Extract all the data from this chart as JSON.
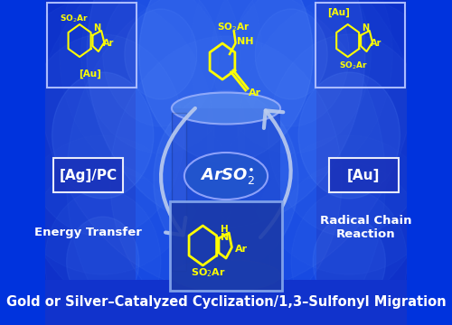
{
  "bg_color": "#0033dd",
  "title_text": "Gold or Silver–Catalyzed Cyclization/1,3–Sulfonyl Migration",
  "title_color": "white",
  "title_fontsize": 10.5,
  "ag_label": "[Ag]/PC",
  "au_label": "[Au]",
  "energy_transfer": "Energy Transfer",
  "radical_chain": "Radical Chain\nReaction",
  "center_text": "ArSO",
  "center_sub": "2",
  "center_dot": "•",
  "chem_color": "#ffff00",
  "arrow_color": "#bbccee",
  "white": "#ffffff",
  "box_fill": "#1a44cc",
  "corner_box_fill": "none",
  "glow1": "#2255ff",
  "glow2": "#4477ff",
  "dark_panel": "#001199"
}
